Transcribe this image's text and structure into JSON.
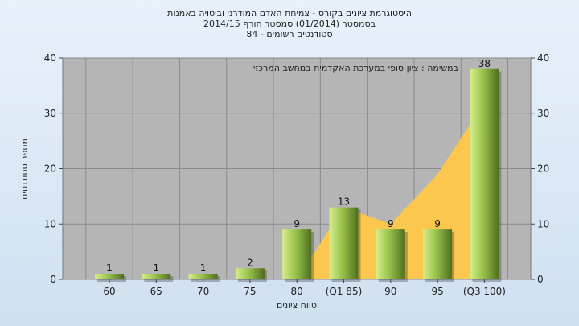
{
  "chart_data": {
    "type": "bar",
    "title_lines": [
      "היסטוגרמת ציונים בקורס - צמיחת האדם המודרני וביטויה באמנות",
      "בסמסטר  (01/2014)  סמסטר חורף  2014/15",
      "סטודנטים רשומים - 84"
    ],
    "annotation": "במשימה : ציון סופי במערכת האקדמית במחשב המרכזי",
    "xlabel": "טווח ציונים",
    "ylabel": "מספר סטודנטים",
    "categories": [
      "60",
      "65",
      "70",
      "75",
      "80",
      "(Q1 85)",
      "90",
      "95",
      "(Q3 100)"
    ],
    "values": [
      1,
      1,
      1,
      2,
      9,
      13,
      9,
      9,
      38
    ],
    "area_values": [
      0,
      0,
      0,
      0,
      0,
      13,
      10,
      19,
      32
    ],
    "ylim": [
      0,
      40
    ],
    "yticks": [
      "0",
      "10",
      "20",
      "30",
      "40"
    ],
    "colors": {
      "plot_bg": "#b5b5b5",
      "bar_light": "#d6ee8a",
      "bar_mid": "#98c24c",
      "bar_dark": "#4f6e1c",
      "area": "#ffc84a"
    }
  }
}
